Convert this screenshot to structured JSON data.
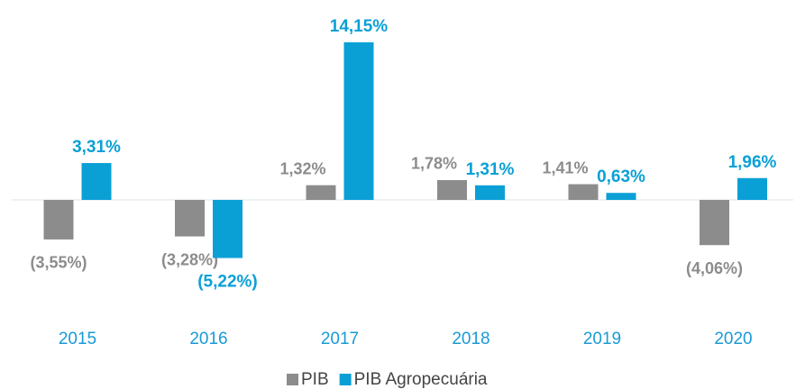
{
  "chart_data": {
    "type": "bar",
    "categories": [
      "2015",
      "2016",
      "2017",
      "2018",
      "2019",
      "2020"
    ],
    "series": [
      {
        "name": "PIB",
        "color": "#8c8c8c",
        "values": [
          -3.55,
          -3.28,
          1.32,
          1.78,
          1.41,
          -4.06
        ],
        "value_labels": [
          "(3,55%)",
          "(3,28%)",
          "1,32%",
          "1,78%",
          "1,41%",
          "(4,06%)"
        ]
      },
      {
        "name": "PIB Agropecuária",
        "color": "#0aa0d6",
        "values": [
          3.31,
          -5.22,
          14.15,
          1.31,
          0.63,
          1.96
        ],
        "value_labels": [
          "3,31%",
          "(5,22%)",
          "14,15%",
          "1,31%",
          "0,63%",
          "1,96%"
        ]
      }
    ],
    "legend": "bottom"
  }
}
